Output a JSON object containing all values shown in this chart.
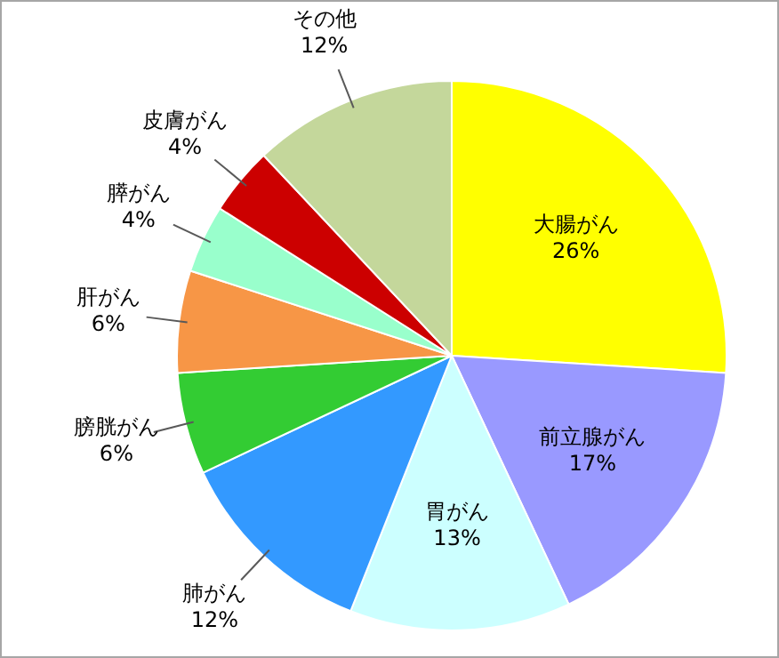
{
  "chart_data": {
    "type": "pie",
    "categories": [
      "大腸がん",
      "前立腺がん",
      "胃がん",
      "肺がん",
      "膀胱がん",
      "肝がん",
      "膵がん",
      "皮膚がん",
      "その他"
    ],
    "values": [
      26,
      17,
      13,
      12,
      6,
      6,
      4,
      4,
      12
    ],
    "value_labels": [
      "26%",
      "17%",
      "13%",
      "12%",
      "6%",
      "6%",
      "4%",
      "4%",
      "12%"
    ],
    "colors": [
      "#ffff00",
      "#9999ff",
      "#ccffff",
      "#3399ff",
      "#33cc33",
      "#f79646",
      "#99ffcc",
      "#cc0000",
      "#c4d79b"
    ]
  }
}
